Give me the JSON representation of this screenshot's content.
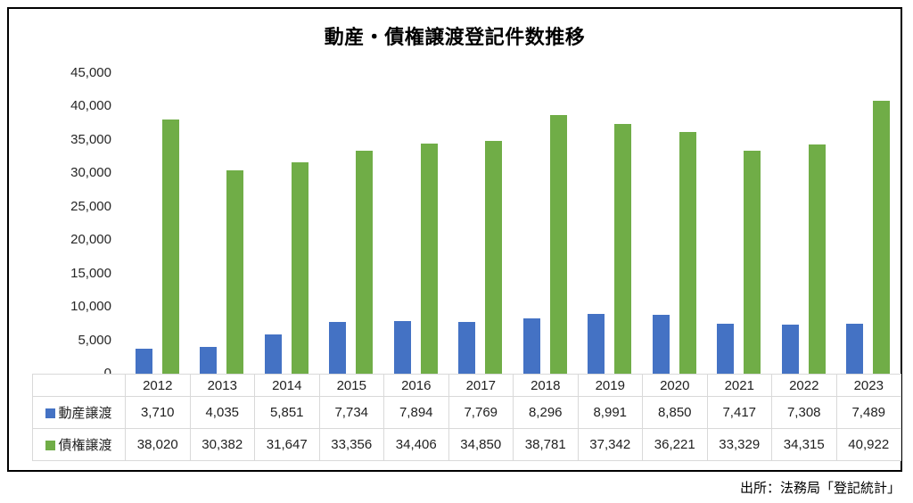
{
  "chart_data": {
    "type": "bar",
    "title": "動産・債権譲渡登記件数推移",
    "categories": [
      "2012",
      "2013",
      "2014",
      "2015",
      "2016",
      "2017",
      "2018",
      "2019",
      "2020",
      "2021",
      "2022",
      "2023"
    ],
    "series": [
      {
        "name": "動産譲渡",
        "color": "#4472C4",
        "values": [
          3710,
          4035,
          5851,
          7734,
          7894,
          7769,
          8296,
          8991,
          8850,
          7417,
          7308,
          7489
        ]
      },
      {
        "name": "債権譲渡",
        "color": "#70AD47",
        "values": [
          38020,
          30382,
          31647,
          33356,
          34406,
          34850,
          38781,
          37342,
          36221,
          33329,
          34315,
          40922
        ]
      }
    ],
    "ylim": [
      0,
      45000
    ],
    "y_tick_step": 5000,
    "y_ticks": [
      "45,000",
      "40,000",
      "35,000",
      "30,000",
      "25,000",
      "20,000",
      "15,000",
      "10,000",
      "5,000",
      "0"
    ],
    "grid": false,
    "legend_position": "table-row-headers"
  },
  "table": {
    "rows": [
      {
        "label": "動産譲渡",
        "color": "#4472C4",
        "values": [
          "3,710",
          "4,035",
          "5,851",
          "7,734",
          "7,894",
          "7,769",
          "8,296",
          "8,991",
          "8,850",
          "7,417",
          "7,308",
          "7,489"
        ]
      },
      {
        "label": "債権譲渡",
        "color": "#70AD47",
        "values": [
          "38,020",
          "30,382",
          "31,647",
          "33,356",
          "34,406",
          "34,850",
          "38,781",
          "37,342",
          "36,221",
          "33,329",
          "34,315",
          "40,922"
        ]
      }
    ]
  },
  "source": {
    "text": "出所：法務局「登記統計」"
  }
}
